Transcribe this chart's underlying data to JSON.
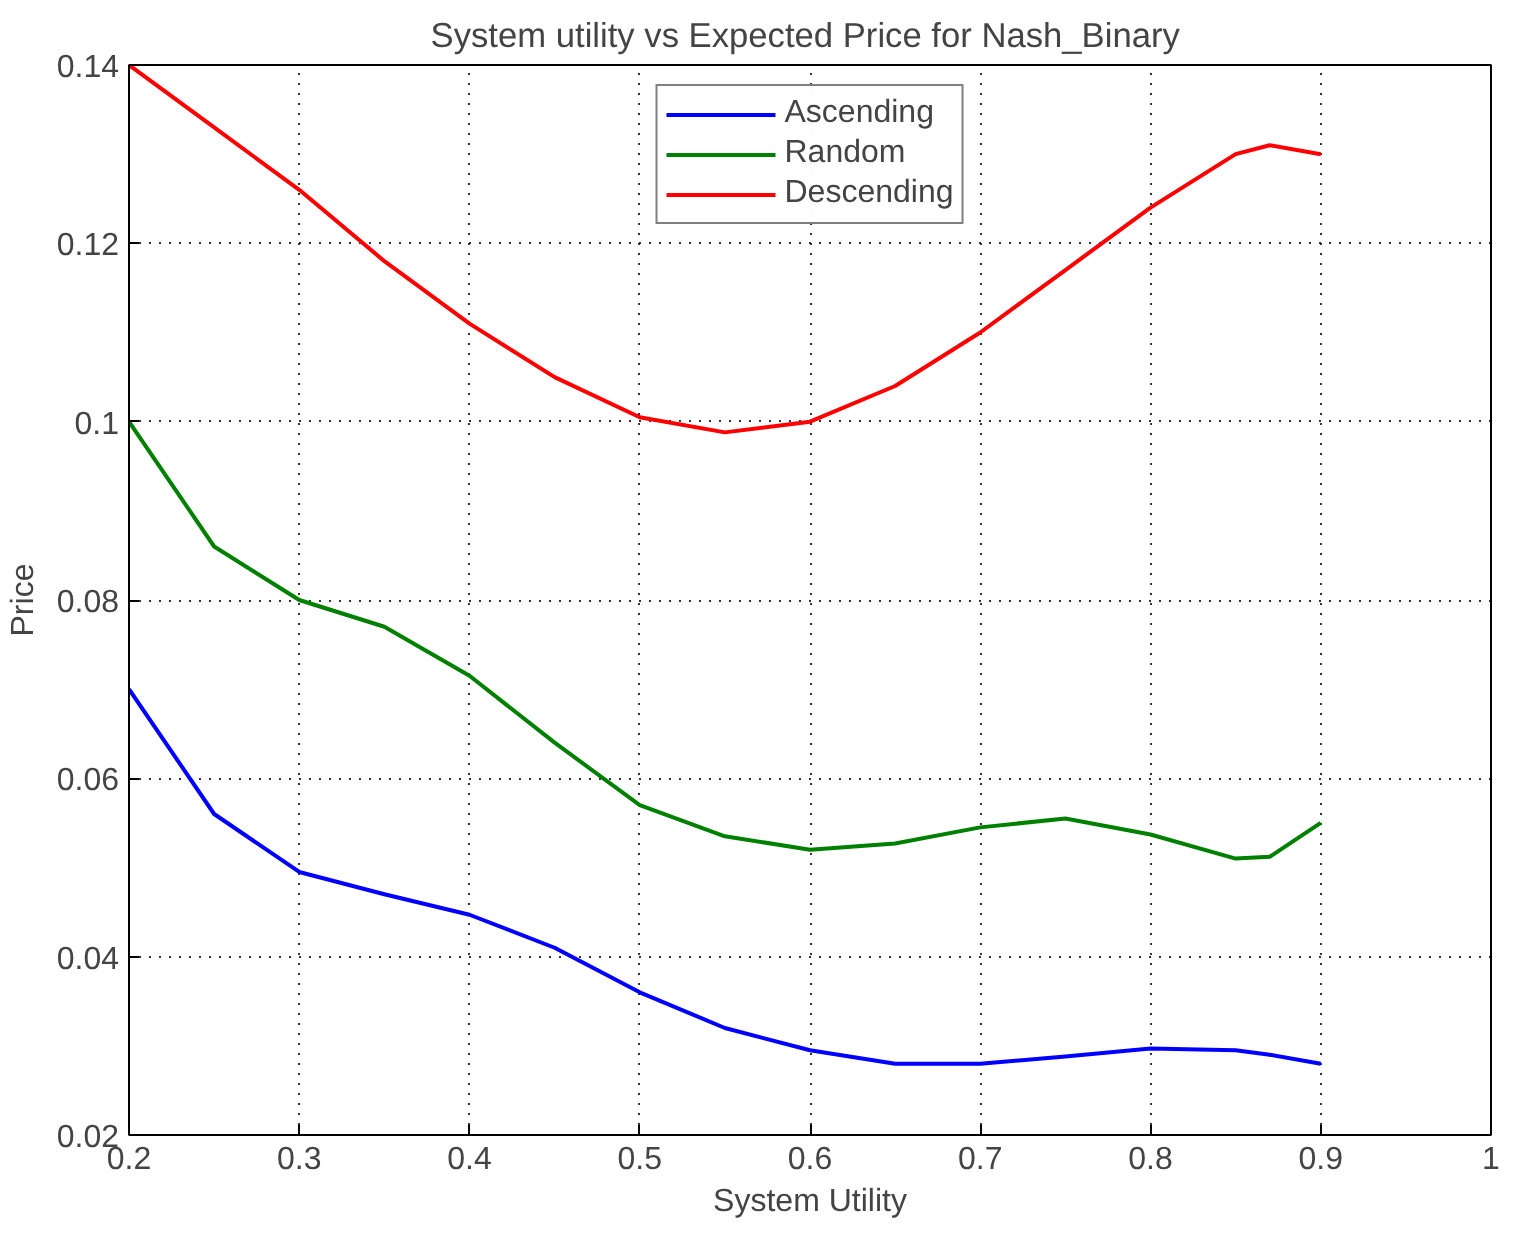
{
  "chart_data": {
    "type": "line",
    "title": "System utility vs Expected Price  for Nash_Binary",
    "xlabel": "System Utility",
    "ylabel": "Price",
    "x": [
      0.2,
      0.25,
      0.3,
      0.35,
      0.4,
      0.45,
      0.5,
      0.55,
      0.6,
      0.65,
      0.7,
      0.75,
      0.8,
      0.85,
      0.87,
      0.9
    ],
    "series": [
      {
        "name": "Ascending",
        "color": "#0000ff",
        "values": [
          0.07,
          0.056,
          0.0495,
          0.047,
          0.0447,
          0.041,
          0.036,
          0.032,
          0.0295,
          0.028,
          0.028,
          0.0288,
          0.0297,
          0.0295,
          0.029,
          0.028
        ]
      },
      {
        "name": "Random",
        "color": "#008000",
        "values": [
          0.1,
          0.086,
          0.08,
          0.077,
          0.0715,
          0.064,
          0.057,
          0.0535,
          0.052,
          0.0527,
          0.0545,
          0.0555,
          0.0537,
          0.051,
          0.0512,
          0.055
        ]
      },
      {
        "name": "Descending",
        "color": "#ff0000",
        "values": [
          0.14,
          0.133,
          0.126,
          0.118,
          0.111,
          0.105,
          0.1005,
          0.0988,
          0.1,
          0.104,
          0.11,
          0.117,
          0.124,
          0.13,
          0.131,
          0.13
        ]
      }
    ],
    "xlim": [
      0.2,
      1
    ],
    "ylim": [
      0.02,
      0.14
    ],
    "xticks": [
      0.2,
      0.3,
      0.4,
      0.5,
      0.6,
      0.7,
      0.8,
      0.9,
      1
    ],
    "yticks": [
      0.02,
      0.04,
      0.06,
      0.08,
      0.1,
      0.12,
      0.14
    ],
    "grid": true,
    "legend": "top",
    "line_style": "solid",
    "marker": "none"
  }
}
